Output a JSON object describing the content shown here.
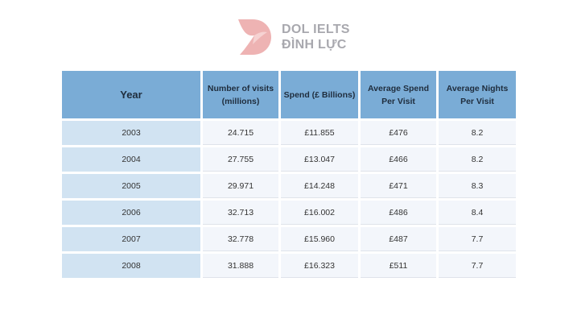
{
  "logo": {
    "line1": "DOL IELTS",
    "line2": "ĐÌNH LỰC",
    "color": "#eeb3b3"
  },
  "chart_data": {
    "type": "table",
    "columns": [
      "Year",
      "Number of visits (millions)",
      "Spend (£ Billions)",
      "Average Spend Per Visit",
      "Average Nights Per Visit"
    ],
    "rows": [
      [
        "2003",
        "24.715",
        "£11.855",
        "£476",
        "8.2"
      ],
      [
        "2004",
        "27.755",
        "£13.047",
        "£466",
        "8.2"
      ],
      [
        "2005",
        "29.971",
        "£14.248",
        "£471",
        "8.3"
      ],
      [
        "2006",
        "32.713",
        "£16.002",
        "£486",
        "8.4"
      ],
      [
        "2007",
        "32.778",
        "£15.960",
        "£487",
        "7.7"
      ],
      [
        "2008",
        "31.888",
        "£16.323",
        "£511",
        "7.7"
      ]
    ],
    "colors": {
      "header": "#7aacd6",
      "year_cell": "#d1e3f2",
      "data_cell": "#f3f6fb"
    }
  }
}
